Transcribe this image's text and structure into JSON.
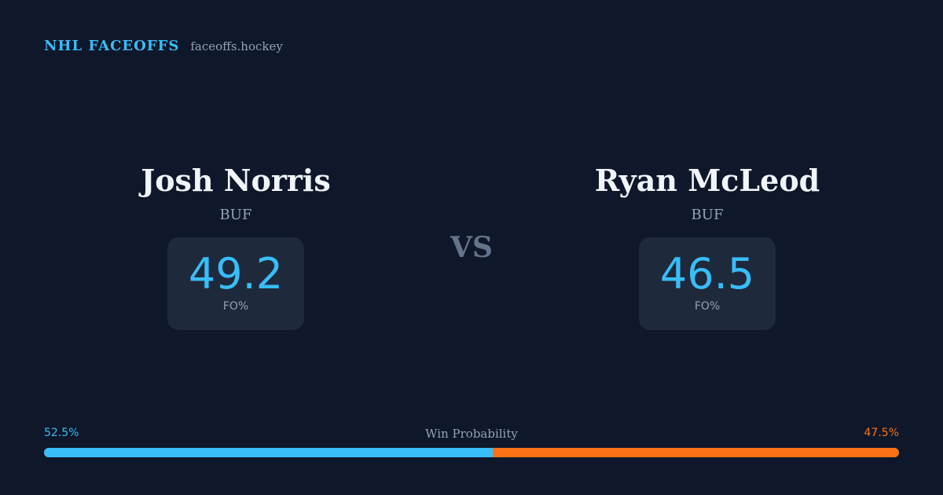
{
  "brand": {
    "title": "NHL FACEOFFS",
    "url": "faceoffs.hockey"
  },
  "players": [
    {
      "name": "Josh Norris",
      "team": "BUF",
      "stat_value": "49.2",
      "stat_label": "FO%"
    },
    {
      "name": "Ryan McLeod",
      "team": "BUF",
      "stat_value": "46.5",
      "stat_label": "FO%"
    }
  ],
  "versus": "VS",
  "win_probability": {
    "title": "Win Probability",
    "left_label": "52.5%",
    "right_label": "47.5%",
    "left_value": 52.5,
    "right_value": 47.5,
    "left_color": "#38bdf8",
    "right_color": "#f97316"
  },
  "colors": {
    "background": "#0f172a",
    "card": "#1e293b",
    "accent": "#38bdf8",
    "secondary_accent": "#f97316",
    "muted_text": "#94a3b8"
  }
}
